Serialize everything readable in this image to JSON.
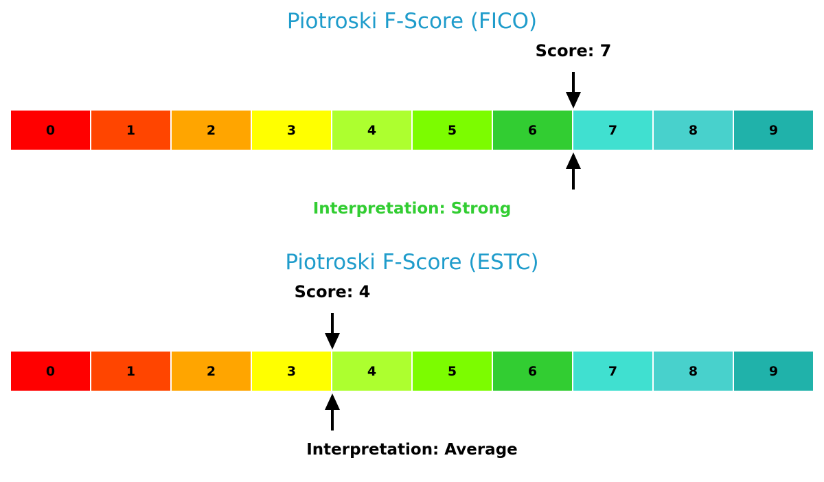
{
  "chart_data": [
    {
      "type": "gauge",
      "title": "Piotroski F-Score (FICO)",
      "score": 7,
      "score_label": "Score: 7",
      "interpretation": "Interpretation: Strong",
      "interpretation_color": "#32cd32",
      "categories": [
        "0",
        "1",
        "2",
        "3",
        "4",
        "5",
        "6",
        "7",
        "8",
        "9"
      ]
    },
    {
      "type": "gauge",
      "title": "Piotroski F-Score (ESTC)",
      "score": 4,
      "score_label": "Score: 4",
      "interpretation": "Interpretation: Average",
      "interpretation_color": "#000000",
      "categories": [
        "0",
        "1",
        "2",
        "3",
        "4",
        "5",
        "6",
        "7",
        "8",
        "9"
      ]
    }
  ],
  "colors": {
    "title": "#1f9ccb",
    "segments": [
      "#ff0000",
      "#ff4500",
      "#ffa500",
      "#ffff00",
      "#adff2f",
      "#7cfc00",
      "#32cd32",
      "#40e0d0",
      "#48d1cc",
      "#20b2aa"
    ]
  }
}
